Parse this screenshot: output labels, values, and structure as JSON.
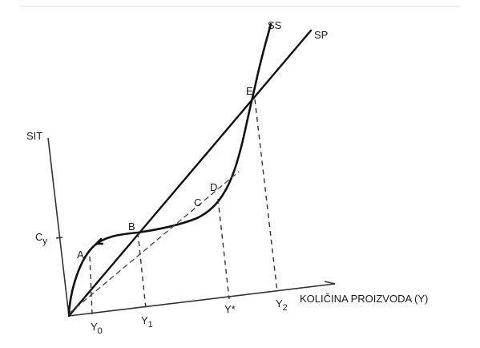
{
  "diagram": {
    "y_axis_label": "SIT",
    "x_axis_label": "KOLIČINA PROIZVODA (Y)",
    "curve_labels": {
      "ss": "SS",
      "sp": "SP"
    },
    "y_axis_marks": {
      "cy": {
        "main": "C",
        "sub": "y"
      }
    },
    "points": {
      "a": "A",
      "b": "B",
      "c": "C",
      "d": "D",
      "e": "E"
    },
    "x_ticks": {
      "y0": {
        "main": "Y",
        "sub": "0"
      },
      "y1": {
        "main": "Y",
        "sub": "1"
      },
      "ystar": {
        "main": "Y*",
        "sub": ""
      },
      "y2": {
        "main": "Y",
        "sub": "2"
      }
    }
  }
}
